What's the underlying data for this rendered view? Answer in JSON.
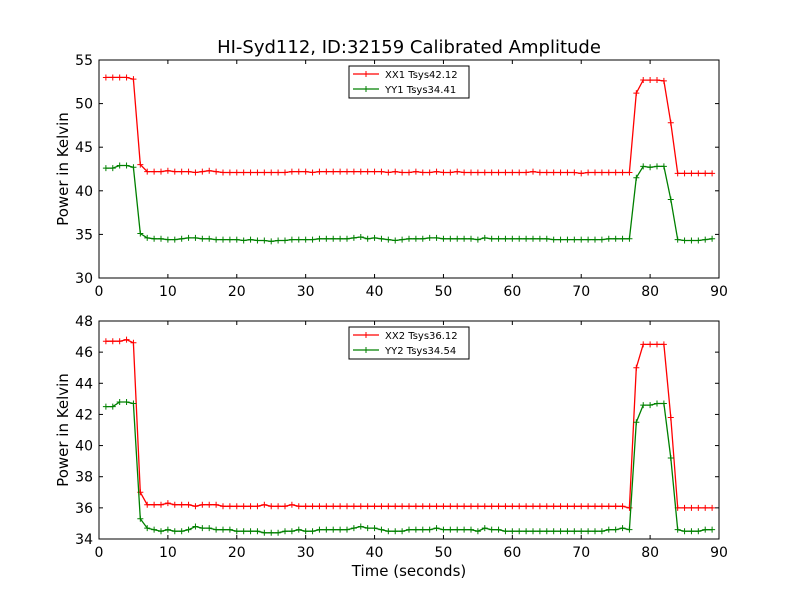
{
  "title": "HI-Syd112, ID:32159 Calibrated Amplitude",
  "colors": {
    "red": "#ff0000",
    "green": "#008000",
    "axis": "#000000"
  },
  "chart_data": [
    {
      "type": "line",
      "ylabel": "Power in Kelvin",
      "xlabel": "",
      "xlim": [
        0,
        90
      ],
      "ylim": [
        30,
        55
      ],
      "xticks": [
        0,
        10,
        20,
        30,
        40,
        50,
        60,
        70,
        80,
        90
      ],
      "yticks": [
        30,
        35,
        40,
        45,
        50,
        55
      ],
      "grid": false,
      "legend_position": "top-center",
      "series": [
        {
          "name": "XX1 Tsys42.12",
          "color": "#ff0000",
          "x": [
            1,
            2,
            3,
            4,
            5,
            6,
            7,
            8,
            9,
            10,
            11,
            12,
            13,
            14,
            15,
            16,
            17,
            18,
            19,
            20,
            21,
            22,
            23,
            24,
            25,
            26,
            27,
            28,
            29,
            30,
            31,
            32,
            33,
            34,
            35,
            36,
            37,
            38,
            39,
            40,
            41,
            42,
            43,
            44,
            45,
            46,
            47,
            48,
            49,
            50,
            51,
            52,
            53,
            54,
            55,
            56,
            57,
            58,
            59,
            60,
            61,
            62,
            63,
            64,
            65,
            66,
            67,
            68,
            69,
            70,
            71,
            72,
            73,
            74,
            75,
            76,
            77,
            78,
            79,
            80,
            81,
            82,
            83,
            84,
            85,
            86,
            87,
            88,
            89
          ],
          "y": [
            53.0,
            53.0,
            53.0,
            53.0,
            52.8,
            43.0,
            42.2,
            42.2,
            42.2,
            42.3,
            42.2,
            42.2,
            42.2,
            42.1,
            42.2,
            42.3,
            42.2,
            42.1,
            42.1,
            42.1,
            42.1,
            42.1,
            42.1,
            42.1,
            42.1,
            42.1,
            42.1,
            42.2,
            42.2,
            42.2,
            42.1,
            42.2,
            42.2,
            42.2,
            42.2,
            42.2,
            42.2,
            42.2,
            42.2,
            42.2,
            42.2,
            42.1,
            42.2,
            42.1,
            42.1,
            42.2,
            42.1,
            42.1,
            42.2,
            42.1,
            42.1,
            42.2,
            42.1,
            42.1,
            42.1,
            42.1,
            42.1,
            42.1,
            42.1,
            42.1,
            42.1,
            42.1,
            42.2,
            42.1,
            42.1,
            42.1,
            42.1,
            42.1,
            42.1,
            42.0,
            42.1,
            42.1,
            42.1,
            42.1,
            42.1,
            42.1,
            42.1,
            51.2,
            52.7,
            52.7,
            52.7,
            52.6,
            47.8,
            42.0,
            42.0,
            42.0,
            42.0,
            42.0,
            42.0
          ]
        },
        {
          "name": "YY1 Tsys34.41",
          "color": "#008000",
          "x": [
            1,
            2,
            3,
            4,
            5,
            6,
            7,
            8,
            9,
            10,
            11,
            12,
            13,
            14,
            15,
            16,
            17,
            18,
            19,
            20,
            21,
            22,
            23,
            24,
            25,
            26,
            27,
            28,
            29,
            30,
            31,
            32,
            33,
            34,
            35,
            36,
            37,
            38,
            39,
            40,
            41,
            42,
            43,
            44,
            45,
            46,
            47,
            48,
            49,
            50,
            51,
            52,
            53,
            54,
            55,
            56,
            57,
            58,
            59,
            60,
            61,
            62,
            63,
            64,
            65,
            66,
            67,
            68,
            69,
            70,
            71,
            72,
            73,
            74,
            75,
            76,
            77,
            78,
            79,
            80,
            81,
            82,
            83,
            84,
            85,
            86,
            87,
            88,
            89
          ],
          "y": [
            42.6,
            42.6,
            42.9,
            42.9,
            42.7,
            35.1,
            34.6,
            34.5,
            34.5,
            34.4,
            34.4,
            34.5,
            34.6,
            34.6,
            34.5,
            34.5,
            34.4,
            34.4,
            34.4,
            34.4,
            34.3,
            34.4,
            34.3,
            34.3,
            34.2,
            34.3,
            34.3,
            34.4,
            34.4,
            34.4,
            34.4,
            34.5,
            34.5,
            34.5,
            34.5,
            34.5,
            34.6,
            34.7,
            34.5,
            34.6,
            34.5,
            34.4,
            34.3,
            34.4,
            34.5,
            34.5,
            34.5,
            34.6,
            34.6,
            34.5,
            34.5,
            34.5,
            34.5,
            34.5,
            34.4,
            34.6,
            34.5,
            34.5,
            34.5,
            34.5,
            34.5,
            34.5,
            34.5,
            34.5,
            34.5,
            34.4,
            34.4,
            34.4,
            34.4,
            34.4,
            34.4,
            34.4,
            34.4,
            34.5,
            34.5,
            34.5,
            34.5,
            41.5,
            42.8,
            42.7,
            42.8,
            42.8,
            39.0,
            34.4,
            34.3,
            34.3,
            34.3,
            34.4,
            34.5
          ]
        }
      ]
    },
    {
      "type": "line",
      "ylabel": "Power in Kelvin",
      "xlabel": "Time (seconds)",
      "xlim": [
        0,
        90
      ],
      "ylim": [
        34,
        48
      ],
      "xticks": [
        0,
        10,
        20,
        30,
        40,
        50,
        60,
        70,
        80,
        90
      ],
      "yticks": [
        34,
        36,
        38,
        40,
        42,
        44,
        46,
        48
      ],
      "grid": false,
      "legend_position": "top-center",
      "series": [
        {
          "name": "XX2 Tsys36.12",
          "color": "#ff0000",
          "x": [
            1,
            2,
            3,
            4,
            5,
            6,
            7,
            8,
            9,
            10,
            11,
            12,
            13,
            14,
            15,
            16,
            17,
            18,
            19,
            20,
            21,
            22,
            23,
            24,
            25,
            26,
            27,
            28,
            29,
            30,
            31,
            32,
            33,
            34,
            35,
            36,
            37,
            38,
            39,
            40,
            41,
            42,
            43,
            44,
            45,
            46,
            47,
            48,
            49,
            50,
            51,
            52,
            53,
            54,
            55,
            56,
            57,
            58,
            59,
            60,
            61,
            62,
            63,
            64,
            65,
            66,
            67,
            68,
            69,
            70,
            71,
            72,
            73,
            74,
            75,
            76,
            77,
            78,
            79,
            80,
            81,
            82,
            83,
            84,
            85,
            86,
            87,
            88,
            89
          ],
          "y": [
            46.7,
            46.7,
            46.7,
            46.8,
            46.6,
            37.0,
            36.2,
            36.2,
            36.2,
            36.3,
            36.2,
            36.2,
            36.2,
            36.1,
            36.2,
            36.2,
            36.2,
            36.1,
            36.1,
            36.1,
            36.1,
            36.1,
            36.1,
            36.2,
            36.1,
            36.1,
            36.1,
            36.2,
            36.1,
            36.1,
            36.1,
            36.1,
            36.1,
            36.1,
            36.1,
            36.1,
            36.1,
            36.1,
            36.1,
            36.1,
            36.1,
            36.1,
            36.1,
            36.1,
            36.1,
            36.1,
            36.1,
            36.1,
            36.1,
            36.1,
            36.1,
            36.1,
            36.1,
            36.1,
            36.1,
            36.1,
            36.1,
            36.1,
            36.1,
            36.1,
            36.1,
            36.1,
            36.1,
            36.1,
            36.1,
            36.1,
            36.1,
            36.1,
            36.1,
            36.1,
            36.1,
            36.1,
            36.1,
            36.1,
            36.1,
            36.1,
            36.0,
            45.0,
            46.5,
            46.5,
            46.5,
            46.5,
            41.8,
            36.0,
            36.0,
            36.0,
            36.0,
            36.0,
            36.0
          ]
        },
        {
          "name": "YY2 Tsys34.54",
          "color": "#008000",
          "x": [
            1,
            2,
            3,
            4,
            5,
            6,
            7,
            8,
            9,
            10,
            11,
            12,
            13,
            14,
            15,
            16,
            17,
            18,
            19,
            20,
            21,
            22,
            23,
            24,
            25,
            26,
            27,
            28,
            29,
            30,
            31,
            32,
            33,
            34,
            35,
            36,
            37,
            38,
            39,
            40,
            41,
            42,
            43,
            44,
            45,
            46,
            47,
            48,
            49,
            50,
            51,
            52,
            53,
            54,
            55,
            56,
            57,
            58,
            59,
            60,
            61,
            62,
            63,
            64,
            65,
            66,
            67,
            68,
            69,
            70,
            71,
            72,
            73,
            74,
            75,
            76,
            77,
            78,
            79,
            80,
            81,
            82,
            83,
            84,
            85,
            86,
            87,
            88,
            89
          ],
          "y": [
            42.5,
            42.5,
            42.8,
            42.8,
            42.7,
            35.3,
            34.7,
            34.6,
            34.5,
            34.6,
            34.5,
            34.5,
            34.6,
            34.8,
            34.7,
            34.7,
            34.6,
            34.6,
            34.6,
            34.5,
            34.5,
            34.5,
            34.5,
            34.4,
            34.4,
            34.4,
            34.5,
            34.5,
            34.6,
            34.5,
            34.5,
            34.6,
            34.6,
            34.6,
            34.6,
            34.6,
            34.7,
            34.8,
            34.7,
            34.7,
            34.6,
            34.5,
            34.5,
            34.5,
            34.6,
            34.6,
            34.6,
            34.6,
            34.7,
            34.6,
            34.6,
            34.6,
            34.6,
            34.6,
            34.5,
            34.7,
            34.6,
            34.6,
            34.5,
            34.5,
            34.5,
            34.5,
            34.5,
            34.5,
            34.5,
            34.5,
            34.5,
            34.5,
            34.5,
            34.5,
            34.5,
            34.5,
            34.5,
            34.6,
            34.6,
            34.7,
            34.6,
            41.5,
            42.6,
            42.6,
            42.7,
            42.7,
            39.2,
            34.6,
            34.5,
            34.5,
            34.5,
            34.6,
            34.6
          ]
        }
      ]
    }
  ]
}
